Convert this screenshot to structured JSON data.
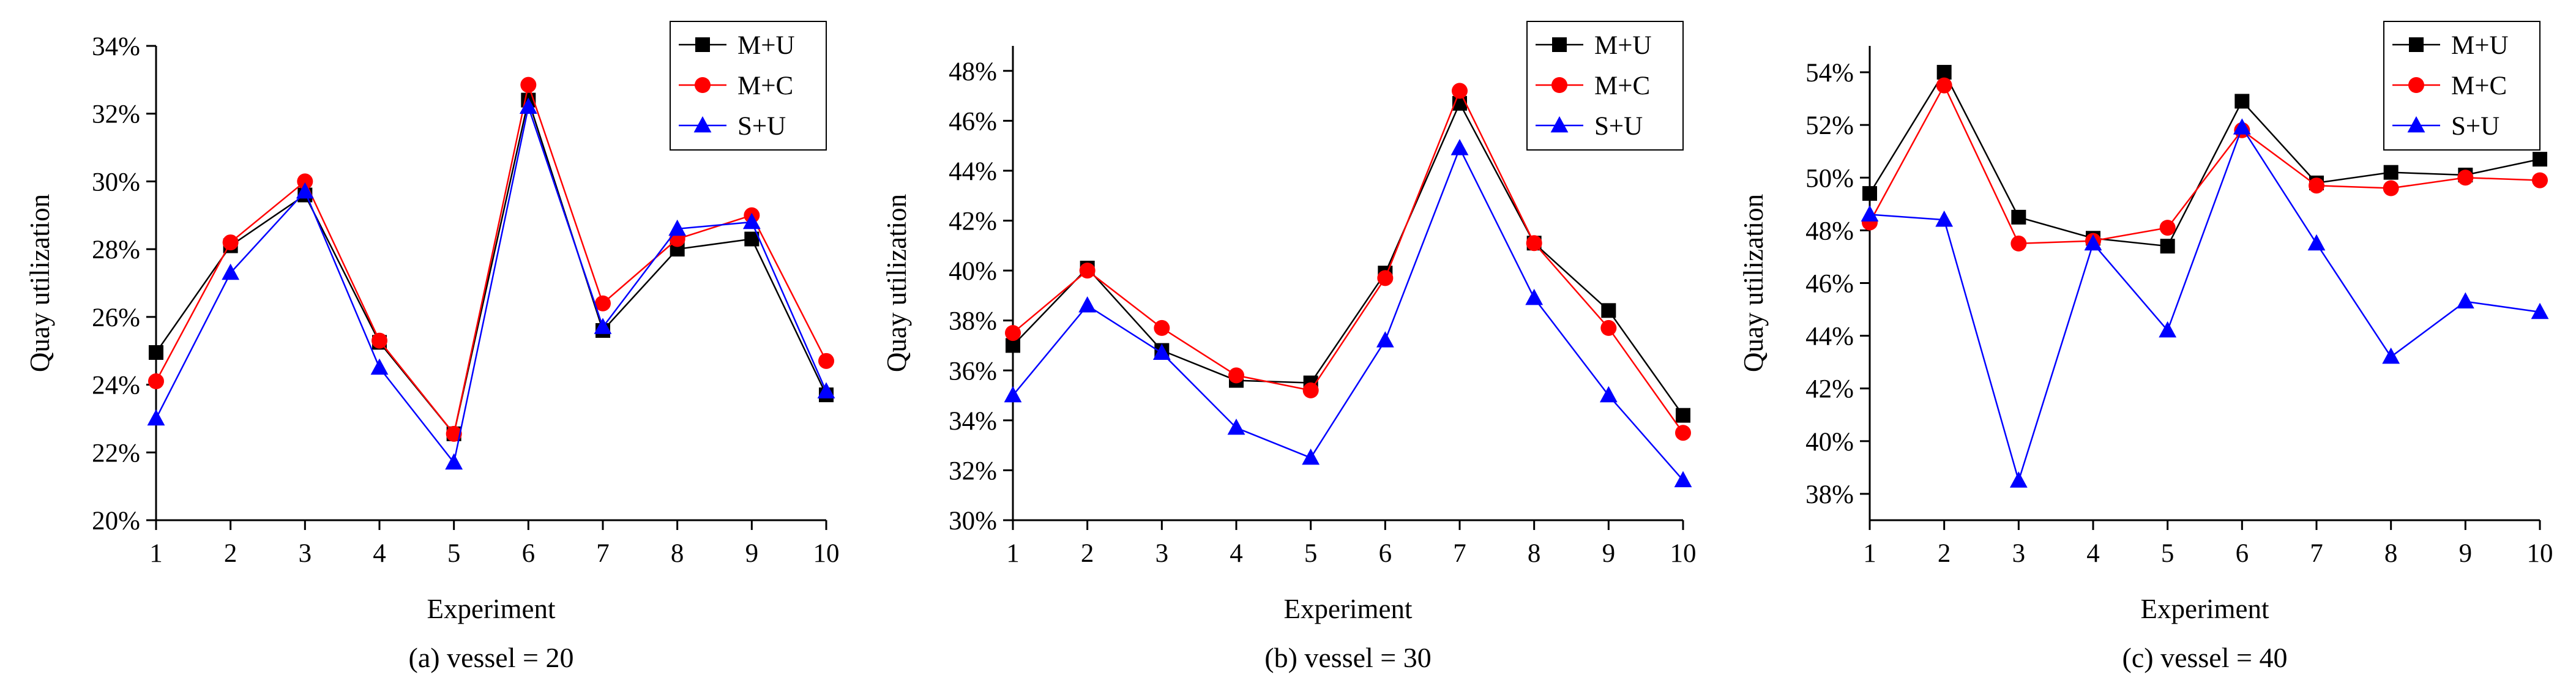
{
  "chart_data": [
    {
      "type": "line",
      "caption": "(a) vessel = 20",
      "xlabel": "Experiment",
      "ylabel": "Quay utilization",
      "x": [
        1,
        2,
        3,
        4,
        5,
        6,
        7,
        8,
        9,
        10
      ],
      "x_tick_labels": [
        "1",
        "2",
        "3",
        "4",
        "5",
        "6",
        "7",
        "8",
        "9",
        "10"
      ],
      "ylim": [
        20,
        34
      ],
      "y_ticks": [
        20,
        22,
        24,
        26,
        28,
        30,
        32,
        34
      ],
      "y_tick_labels": [
        "20%",
        "22%",
        "24%",
        "26%",
        "28%",
        "30%",
        "32%",
        "34%"
      ],
      "legend_position": "top-right",
      "series": [
        {
          "name": "M+U",
          "color": "#000000",
          "marker": "square",
          "values": [
            24.95,
            28.1,
            29.6,
            25.25,
            22.55,
            32.4,
            25.6,
            28.0,
            28.3,
            23.7
          ]
        },
        {
          "name": "M+C",
          "color": "#ff0000",
          "marker": "circle",
          "values": [
            24.1,
            28.2,
            30.0,
            25.3,
            22.55,
            32.85,
            26.4,
            28.3,
            29.0,
            24.7
          ]
        },
        {
          "name": "S+U",
          "color": "#0000ff",
          "marker": "triangle",
          "values": [
            23.0,
            27.3,
            29.7,
            24.5,
            21.7,
            32.2,
            25.7,
            28.6,
            28.8,
            23.8
          ]
        }
      ]
    },
    {
      "type": "line",
      "caption": "(b) vessel = 30",
      "xlabel": "Experiment",
      "ylabel": "Quay utilization",
      "x": [
        1,
        2,
        3,
        4,
        5,
        6,
        7,
        8,
        9,
        10
      ],
      "x_tick_labels": [
        "1",
        "2",
        "3",
        "4",
        "5",
        "6",
        "7",
        "8",
        "9",
        "10"
      ],
      "ylim": [
        30,
        49
      ],
      "y_ticks": [
        30,
        32,
        34,
        36,
        38,
        40,
        42,
        44,
        46,
        48
      ],
      "y_tick_labels": [
        "30%",
        "32%",
        "34%",
        "36%",
        "38%",
        "40%",
        "42%",
        "44%",
        "46%",
        "48%"
      ],
      "legend_position": "top-right",
      "series": [
        {
          "name": "M+U",
          "color": "#000000",
          "marker": "square",
          "values": [
            37.0,
            40.1,
            36.8,
            35.6,
            35.5,
            39.9,
            46.7,
            41.1,
            38.4,
            34.2
          ]
        },
        {
          "name": "M+C",
          "color": "#ff0000",
          "marker": "circle",
          "values": [
            37.5,
            40.0,
            37.7,
            35.8,
            35.2,
            39.7,
            47.2,
            41.1,
            37.7,
            33.5
          ]
        },
        {
          "name": "S+U",
          "color": "#0000ff",
          "marker": "triangle",
          "values": [
            35.0,
            38.6,
            36.7,
            33.7,
            32.5,
            37.2,
            44.9,
            38.9,
            35.0,
            31.6
          ]
        }
      ]
    },
    {
      "type": "line",
      "caption": "(c) vessel = 40",
      "xlabel": "Experiment",
      "ylabel": "Quay utilization",
      "x": [
        1,
        2,
        3,
        4,
        5,
        6,
        7,
        8,
        9,
        10
      ],
      "x_tick_labels": [
        "1",
        "2",
        "3",
        "4",
        "5",
        "6",
        "7",
        "8",
        "9",
        "10"
      ],
      "ylim": [
        37,
        55
      ],
      "y_ticks": [
        38,
        40,
        42,
        44,
        46,
        48,
        50,
        52,
        54
      ],
      "y_tick_labels": [
        "38%",
        "40%",
        "42%",
        "44%",
        "46%",
        "48%",
        "50%",
        "52%",
        "54%"
      ],
      "legend_position": "top-right",
      "series": [
        {
          "name": "M+U",
          "color": "#000000",
          "marker": "square",
          "values": [
            49.4,
            54.0,
            48.5,
            47.7,
            47.4,
            52.9,
            49.8,
            50.2,
            50.1,
            50.7
          ]
        },
        {
          "name": "M+C",
          "color": "#ff0000",
          "marker": "circle",
          "values": [
            48.3,
            53.5,
            47.5,
            47.6,
            48.1,
            51.8,
            49.7,
            49.6,
            50.0,
            49.9
          ]
        },
        {
          "name": "S+U",
          "color": "#0000ff",
          "marker": "triangle",
          "values": [
            48.6,
            48.4,
            38.5,
            47.5,
            44.2,
            51.9,
            47.5,
            43.2,
            45.3,
            44.9
          ]
        }
      ]
    }
  ]
}
